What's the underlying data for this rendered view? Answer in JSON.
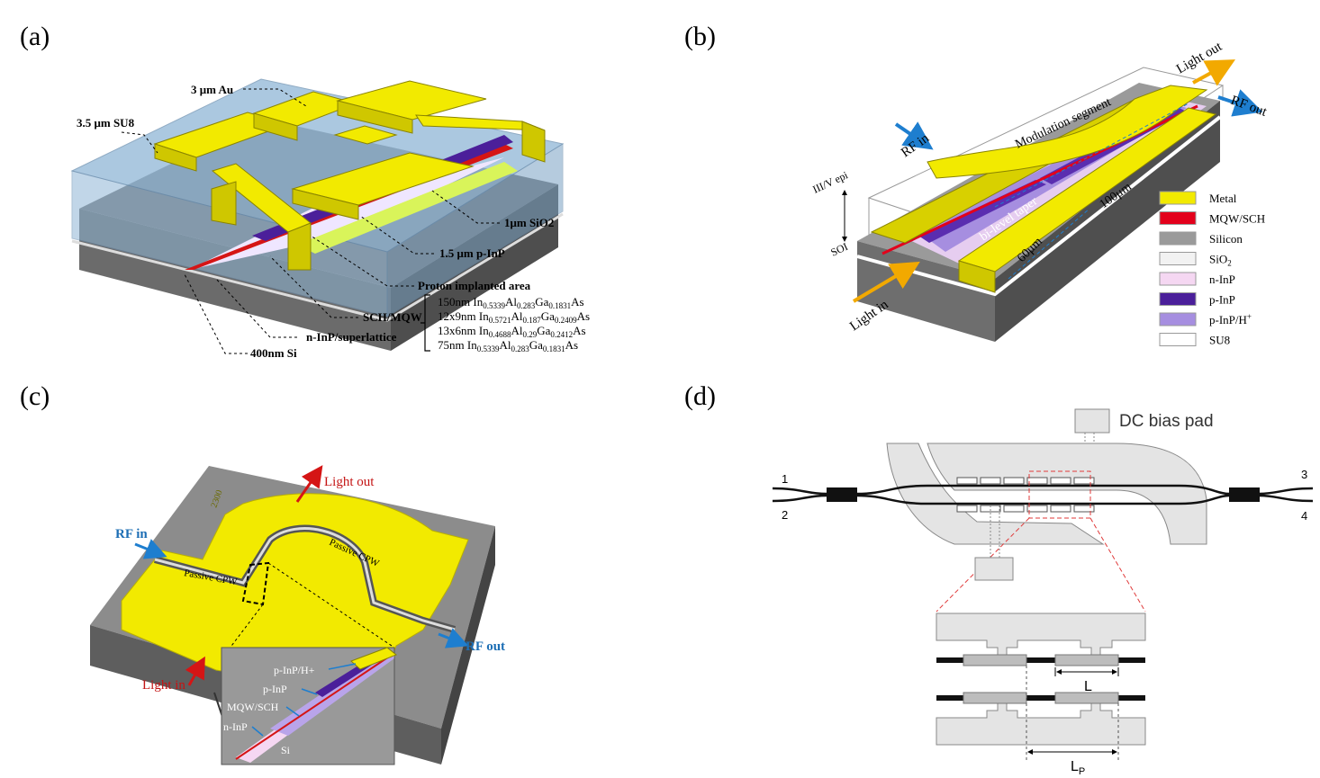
{
  "colors": {
    "gold": "#f2ea00",
    "gold_dark": "#b9b000",
    "gold_side": "#d8d000",
    "gray_top": "#8a8a8a",
    "gray_side": "#5e5e5e",
    "su8": "#8fb6d6",
    "mqw": "#e3001b",
    "pinp": "#4b1f9a",
    "pinp_h": "#a68ee0",
    "ninp": "#f5d7f2",
    "sio2": "#f2f2f2",
    "blue_arrow": "#1e7ecf",
    "orange_arrow": "#f2a900",
    "red_arrow": "#d51515",
    "pad_fill": "#e4e4e4",
    "dash_red": "#e03a3a"
  },
  "panel_a": {
    "tag": "(a)",
    "au": "3 μm Au",
    "su8": "3.5 μm SU8",
    "sio2": "1μm SiO2",
    "pinp": "1.5 μm p-InP",
    "proton": "Proton implanted area",
    "sch": "SCH/MQW",
    "ninp": "n-InP/superlattice",
    "si": "400nm Si",
    "stack": [
      {
        "pre": "150nm In",
        "s1": "0.5339",
        "m1": "Al",
        "s2": "0.283",
        "m2": "Ga",
        "s3": "0.1831",
        "post": "As"
      },
      {
        "pre": "12x9nm In",
        "s1": "0.5721",
        "m1": "Al",
        "s2": "0.187",
        "m2": "Ga",
        "s3": "0.2409",
        "post": "As"
      },
      {
        "pre": "13x6nm In",
        "s1": "0.4688",
        "m1": "Al",
        "s2": "0.29",
        "m2": "Ga",
        "s3": "0.2412",
        "post": "As"
      },
      {
        "pre": "75nm In",
        "s1": "0.5339",
        "m1": "Al",
        "s2": "0.283",
        "m2": "Ga",
        "s3": "0.1831",
        "post": "As"
      }
    ]
  },
  "panel_b": {
    "tag": "(b)",
    "light_out": "Light out",
    "rf_out": "RF out",
    "rf_in": "RF in",
    "mod_seg": "Modulation segment",
    "iiiv": "III/V epi",
    "soi": "SOI",
    "taper": "bi-level taper",
    "d100": "100μm",
    "d60": "60μm",
    "light_in": "Light in",
    "legend": [
      {
        "label": "Metal",
        "color": "#f2ea00"
      },
      {
        "label": "MQW/SCH",
        "color": "#e3001b"
      },
      {
        "label": "Silicon",
        "color": "#9a9a9a"
      },
      {
        "label": "SiO",
        "sub": "2",
        "color": "#f2f2f2"
      },
      {
        "label": "n-InP",
        "color": "#f5d7f2"
      },
      {
        "label": "p-InP",
        "color": "#4b1f9a"
      },
      {
        "label": "p-InP/H",
        "sup": "+",
        "color": "#a68ee0"
      },
      {
        "label": "SU8",
        "color": "#ffffff"
      }
    ]
  },
  "panel_c": {
    "tag": "(c)",
    "light_out": "Light out",
    "rf_in": "RF in",
    "rf_out": "RF out",
    "light_in": "Light in",
    "passive1": "Passive CPW",
    "passive2": "Passive CPW",
    "chip_id": "2300",
    "inset": {
      "pinp_h": "p-InP/H+",
      "pinp": "p-InP",
      "mqw": "MQW/SCH",
      "ninp": "n-InP",
      "si": "Si"
    }
  },
  "panel_d": {
    "tag": "(d)",
    "dc": "DC bias pad",
    "p1": "1",
    "p2": "2",
    "p3": "3",
    "p4": "4",
    "L": "L",
    "Lp": "L",
    "Lp_sub": "P"
  }
}
